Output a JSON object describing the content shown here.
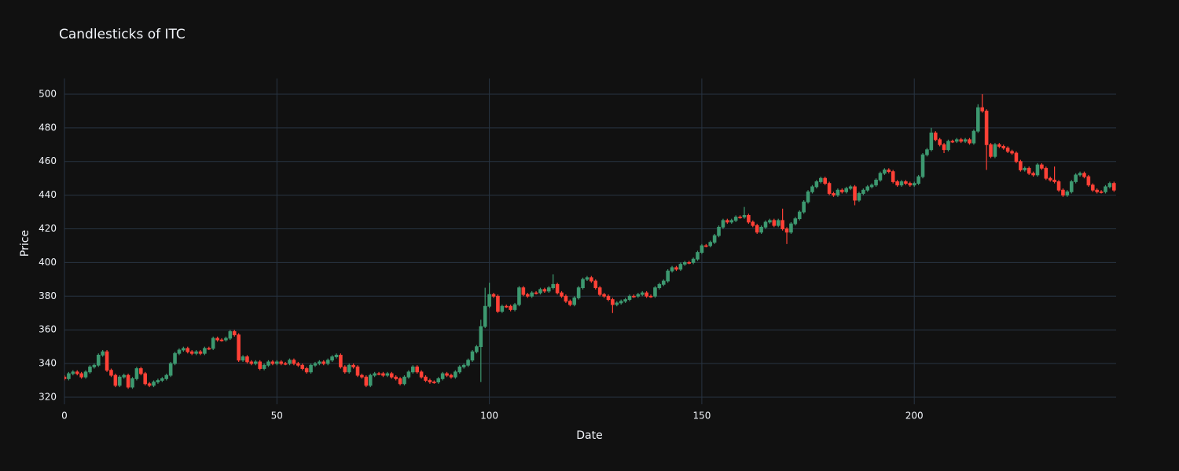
{
  "chart_data": {
    "type": "candlestick",
    "title": "Candlesticks of ITC",
    "x_label": "Date",
    "y_label": "Price",
    "increasing_color": "#3d9970",
    "decreasing_color": "#ff4136",
    "grid": true,
    "xlim": [
      0,
      247.5
    ],
    "xticks": [
      0,
      50,
      100,
      150,
      200
    ],
    "ylim": [
      315.8,
      509.3
    ],
    "yticks": [
      320,
      340,
      360,
      380,
      400,
      420,
      440,
      460,
      480,
      500
    ],
    "x": [
      0,
      1,
      2,
      3,
      4,
      5,
      6,
      7,
      8,
      9,
      10,
      11,
      12,
      13,
      14,
      15,
      16,
      17,
      18,
      19,
      20,
      21,
      22,
      23,
      24,
      25,
      26,
      27,
      28,
      29,
      30,
      31,
      32,
      33,
      34,
      35,
      36,
      37,
      38,
      39,
      40,
      41,
      42,
      43,
      44,
      45,
      46,
      47,
      48,
      49,
      50,
      51,
      52,
      53,
      54,
      55,
      56,
      57,
      58,
      59,
      60,
      61,
      62,
      63,
      64,
      65,
      66,
      67,
      68,
      69,
      70,
      71,
      72,
      73,
      74,
      75,
      76,
      77,
      78,
      79,
      80,
      81,
      82,
      83,
      84,
      85,
      86,
      87,
      88,
      89,
      90,
      91,
      92,
      93,
      94,
      95,
      96,
      97,
      98,
      99,
      100,
      101,
      102,
      103,
      104,
      105,
      106,
      107,
      108,
      109,
      110,
      111,
      112,
      113,
      114,
      115,
      116,
      117,
      118,
      119,
      120,
      121,
      122,
      123,
      124,
      125,
      126,
      127,
      128,
      129,
      130,
      131,
      132,
      133,
      134,
      135,
      136,
      137,
      138,
      139,
      140,
      141,
      142,
      143,
      144,
      145,
      146,
      147,
      148,
      149,
      150,
      151,
      152,
      153,
      154,
      155,
      156,
      157,
      158,
      159,
      160,
      161,
      162,
      163,
      164,
      165,
      166,
      167,
      168,
      169,
      170,
      171,
      172,
      173,
      174,
      175,
      176,
      177,
      178,
      179,
      180,
      181,
      182,
      183,
      184,
      185,
      186,
      187,
      188,
      189,
      190,
      191,
      192,
      193,
      194,
      195,
      196,
      197,
      198,
      199,
      200,
      201,
      202,
      203,
      204,
      205,
      206,
      207,
      208,
      209,
      210,
      211,
      212,
      213,
      214,
      215,
      216,
      217,
      218,
      219,
      220,
      221,
      222,
      223,
      224,
      225,
      226,
      227,
      228,
      229,
      230,
      231,
      232,
      233,
      234,
      235,
      236,
      237,
      238,
      239,
      240,
      241,
      242,
      243,
      244,
      245,
      246,
      247
    ],
    "open": [
      332,
      331,
      334,
      335,
      334,
      332,
      335,
      338,
      339,
      345,
      347,
      336,
      333,
      327,
      332,
      333,
      326,
      331,
      337,
      334,
      328,
      327,
      329,
      330,
      331,
      333,
      340,
      346,
      348,
      349,
      347,
      346,
      347,
      346,
      349,
      349,
      355,
      354,
      354,
      355,
      359,
      357,
      342,
      344,
      341,
      340,
      341,
      337,
      339,
      341,
      340,
      341,
      340,
      340,
      342,
      340,
      339,
      337,
      335,
      339,
      340,
      341,
      340,
      342,
      344,
      345,
      338,
      335,
      339,
      338,
      333,
      332,
      327,
      333,
      334,
      334,
      333,
      334,
      332,
      331,
      328,
      332,
      335,
      338,
      335,
      332,
      330,
      329,
      329,
      331,
      334,
      333,
      332,
      335,
      338,
      339,
      342,
      347,
      350,
      362,
      374,
      381,
      380,
      371,
      374,
      374,
      372,
      375,
      385,
      381,
      380,
      382,
      382,
      384,
      383,
      385,
      387,
      382,
      380,
      377,
      375,
      379,
      385,
      390,
      391,
      389,
      385,
      381,
      380,
      378,
      375,
      376,
      377,
      378,
      380,
      380,
      381,
      382,
      380,
      380,
      385,
      387,
      389,
      395,
      397,
      396,
      399,
      400,
      400,
      402,
      406,
      410,
      410,
      412,
      416,
      421,
      425,
      424,
      425,
      427,
      427,
      428,
      424,
      422,
      418,
      421,
      424,
      425,
      422,
      425,
      420,
      418,
      423,
      426,
      430,
      436,
      442,
      445,
      448,
      450,
      447,
      441,
      440,
      443,
      442,
      444,
      445,
      437,
      441,
      443,
      445,
      446,
      449,
      453,
      455,
      454,
      448,
      446,
      448,
      447,
      446,
      447,
      451,
      464,
      467,
      477,
      473,
      470,
      467,
      472,
      472,
      473,
      472,
      473,
      471,
      478,
      492,
      490,
      470,
      463,
      470,
      469,
      468,
      466,
      465,
      460,
      455,
      456,
      453,
      452,
      458,
      456,
      450,
      449,
      448,
      443,
      440,
      442,
      448,
      452,
      453,
      451,
      446,
      443,
      442,
      442,
      445,
      447
    ],
    "high": [
      333,
      335,
      336,
      336,
      335,
      336,
      339,
      340,
      346,
      348,
      348,
      337,
      334,
      333,
      334,
      334,
      332,
      338,
      338,
      335,
      329,
      330,
      331,
      332,
      334,
      341,
      347,
      349,
      350,
      350,
      348,
      348,
      348,
      350,
      350,
      356,
      356,
      355,
      356,
      360,
      360,
      358,
      345,
      345,
      342,
      342,
      342,
      340,
      342,
      342,
      342,
      342,
      341,
      343,
      343,
      341,
      340,
      338,
      340,
      341,
      342,
      342,
      343,
      345,
      346,
      346,
      339,
      340,
      340,
      339,
      334,
      333,
      334,
      335,
      335,
      335,
      335,
      335,
      333,
      332,
      333,
      336,
      339,
      339,
      336,
      333,
      331,
      330,
      332,
      335,
      335,
      334,
      336,
      339,
      340,
      343,
      348,
      351,
      366,
      385,
      388,
      382,
      381,
      375,
      375,
      375,
      376,
      386,
      386,
      382,
      383,
      383,
      385,
      385,
      386,
      393,
      388,
      383,
      381,
      378,
      380,
      386,
      391,
      392,
      392,
      390,
      386,
      382,
      381,
      379,
      377,
      378,
      379,
      381,
      381,
      382,
      383,
      383,
      381,
      386,
      388,
      390,
      396,
      398,
      398,
      400,
      401,
      401,
      403,
      407,
      411,
      411,
      413,
      417,
      422,
      426,
      426,
      426,
      428,
      428,
      433,
      429,
      425,
      423,
      422,
      425,
      426,
      426,
      426,
      432,
      421,
      424,
      427,
      431,
      437,
      443,
      446,
      449,
      451,
      451,
      448,
      442,
      444,
      444,
      445,
      446,
      446,
      442,
      444,
      446,
      447,
      450,
      454,
      456,
      456,
      455,
      449,
      449,
      449,
      448,
      448,
      452,
      465,
      468,
      480,
      478,
      474,
      471,
      473,
      473,
      474,
      474,
      474,
      474,
      479,
      494,
      500,
      491,
      471,
      471,
      471,
      470,
      469,
      467,
      466,
      461,
      457,
      457,
      454,
      459,
      459,
      457,
      451,
      457,
      449,
      444,
      443,
      449,
      453,
      454,
      454,
      452,
      447,
      444,
      443,
      446,
      448,
      448
    ],
    "low": [
      330,
      330,
      333,
      333,
      331,
      331,
      334,
      337,
      338,
      344,
      335,
      332,
      326,
      326,
      331,
      325,
      325,
      330,
      333,
      327,
      326,
      326,
      328,
      329,
      330,
      332,
      339,
      345,
      347,
      346,
      345,
      345,
      345,
      345,
      348,
      348,
      353,
      353,
      353,
      354,
      356,
      341,
      341,
      340,
      339,
      339,
      336,
      336,
      338,
      339,
      339,
      339,
      339,
      339,
      339,
      338,
      336,
      334,
      334,
      338,
      339,
      339,
      339,
      341,
      343,
      337,
      334,
      334,
      337,
      332,
      331,
      326,
      326,
      332,
      333,
      332,
      332,
      331,
      330,
      327,
      327,
      331,
      334,
      334,
      331,
      329,
      328,
      328,
      328,
      330,
      332,
      331,
      331,
      334,
      337,
      338,
      341,
      346,
      329,
      361,
      373,
      379,
      370,
      370,
      373,
      371,
      371,
      374,
      380,
      379,
      379,
      381,
      381,
      382,
      382,
      384,
      381,
      379,
      376,
      374,
      374,
      378,
      384,
      389,
      388,
      384,
      380,
      379,
      377,
      370,
      374,
      375,
      376,
      377,
      379,
      379,
      380,
      379,
      379,
      379,
      384,
      386,
      388,
      394,
      395,
      395,
      398,
      399,
      399,
      401,
      405,
      409,
      409,
      411,
      415,
      420,
      423,
      423,
      424,
      426,
      426,
      423,
      421,
      417,
      417,
      420,
      423,
      421,
      421,
      419,
      411,
      417,
      422,
      425,
      429,
      435,
      441,
      444,
      447,
      446,
      440,
      439,
      439,
      441,
      441,
      443,
      434,
      436,
      440,
      442,
      444,
      445,
      448,
      452,
      453,
      447,
      445,
      445,
      446,
      445,
      445,
      446,
      450,
      463,
      466,
      472,
      469,
      465,
      466,
      471,
      471,
      471,
      471,
      470,
      470,
      477,
      489,
      455,
      462,
      462,
      468,
      467,
      465,
      464,
      459,
      454,
      454,
      452,
      451,
      451,
      455,
      449,
      448,
      447,
      442,
      439,
      439,
      441,
      447,
      451,
      450,
      445,
      442,
      441,
      441,
      441,
      444,
      442
    ],
    "close": [
      331,
      334,
      335,
      334,
      332,
      335,
      338,
      339,
      345,
      347,
      336,
      333,
      327,
      332,
      333,
      326,
      331,
      337,
      334,
      328,
      327,
      329,
      330,
      331,
      333,
      340,
      346,
      348,
      349,
      347,
      346,
      347,
      346,
      349,
      349,
      355,
      354,
      354,
      355,
      359,
      357,
      342,
      344,
      341,
      340,
      341,
      337,
      339,
      341,
      340,
      341,
      340,
      340,
      342,
      340,
      339,
      337,
      335,
      339,
      340,
      341,
      340,
      342,
      344,
      345,
      338,
      335,
      339,
      338,
      333,
      332,
      327,
      333,
      334,
      334,
      333,
      334,
      332,
      331,
      328,
      332,
      335,
      338,
      335,
      332,
      330,
      329,
      329,
      331,
      334,
      333,
      332,
      335,
      338,
      339,
      342,
      347,
      350,
      362,
      374,
      381,
      380,
      371,
      374,
      374,
      372,
      375,
      385,
      381,
      380,
      382,
      382,
      384,
      383,
      385,
      387,
      382,
      380,
      377,
      375,
      379,
      385,
      390,
      391,
      389,
      385,
      381,
      380,
      378,
      375,
      376,
      377,
      378,
      380,
      380,
      381,
      382,
      380,
      380,
      385,
      387,
      389,
      395,
      397,
      396,
      399,
      400,
      400,
      402,
      406,
      410,
      410,
      412,
      416,
      421,
      425,
      424,
      425,
      427,
      427,
      428,
      424,
      422,
      418,
      421,
      424,
      425,
      422,
      425,
      420,
      418,
      423,
      426,
      430,
      436,
      442,
      445,
      448,
      450,
      447,
      441,
      440,
      443,
      442,
      444,
      445,
      437,
      441,
      443,
      445,
      446,
      449,
      453,
      455,
      454,
      448,
      446,
      448,
      447,
      446,
      447,
      451,
      464,
      467,
      477,
      473,
      470,
      467,
      472,
      472,
      473,
      472,
      473,
      471,
      478,
      492,
      490,
      470,
      463,
      470,
      469,
      468,
      466,
      465,
      460,
      455,
      456,
      453,
      452,
      458,
      456,
      450,
      449,
      448,
      443,
      440,
      442,
      448,
      452,
      453,
      451,
      446,
      443,
      442,
      442,
      445,
      447,
      443
    ]
  }
}
